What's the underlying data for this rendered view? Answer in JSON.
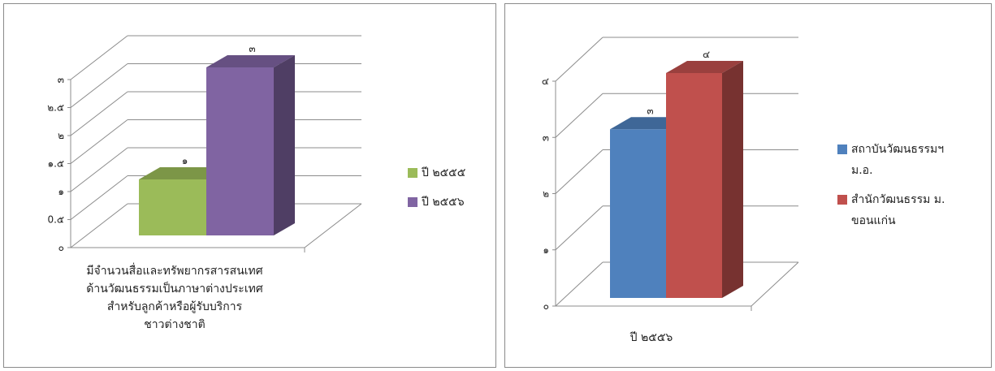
{
  "chart_data": [
    {
      "type": "bar",
      "categories": [
        "มีจำนวนสื่อและทรัพยากรสารสนเทศด้านวัฒนธรรมเป็นภาษาต่างประเทศสำหรับลูกค้าหรือผู้รับบริการชาวต่างชาติ"
      ],
      "category_lines": [
        "มีจำนวนสื่อและทรัพยากรสารสนเทศ",
        "ด้านวัฒนธรรมเป็นภาษาต่างประเทศ",
        "สำหรับลูกค้าหรือผู้รับบริการ",
        "ชาวต่างชาติ"
      ],
      "series": [
        {
          "name": "ปี ๒๕๕๕",
          "values": [
            1
          ],
          "label": "๑",
          "color": "#9BBB59"
        },
        {
          "name": "ปี ๒๕๕๖",
          "values": [
            3
          ],
          "label": "๓",
          "color": "#8064A2"
        }
      ],
      "ylim": [
        0,
        3
      ],
      "yticks": [
        "๐",
        "0.๕",
        "๑",
        "๑.๕",
        "๒",
        "๒.๕",
        "๓"
      ],
      "legend": "right"
    },
    {
      "type": "bar",
      "categories": [
        "ปี ๒๕๕๖"
      ],
      "series": [
        {
          "name": "สถาบันวัฒนธรรมฯ ม.อ.",
          "name_lines": [
            "สถาบันวัฒนธรรมฯ",
            "ม.อ."
          ],
          "values": [
            3
          ],
          "label": "๓",
          "color": "#4F81BD"
        },
        {
          "name": "สำนักวัฒนธรรม ม. ขอนแก่น",
          "name_lines": [
            "สำนักวัฒนธรรม ม.",
            "ขอนแก่น"
          ],
          "values": [
            4
          ],
          "label": "๔",
          "color": "#C0504D"
        }
      ],
      "ylim": [
        0,
        4
      ],
      "yticks": [
        "๐",
        "๑",
        "๒",
        "๓",
        "๔"
      ],
      "legend": "right"
    }
  ]
}
